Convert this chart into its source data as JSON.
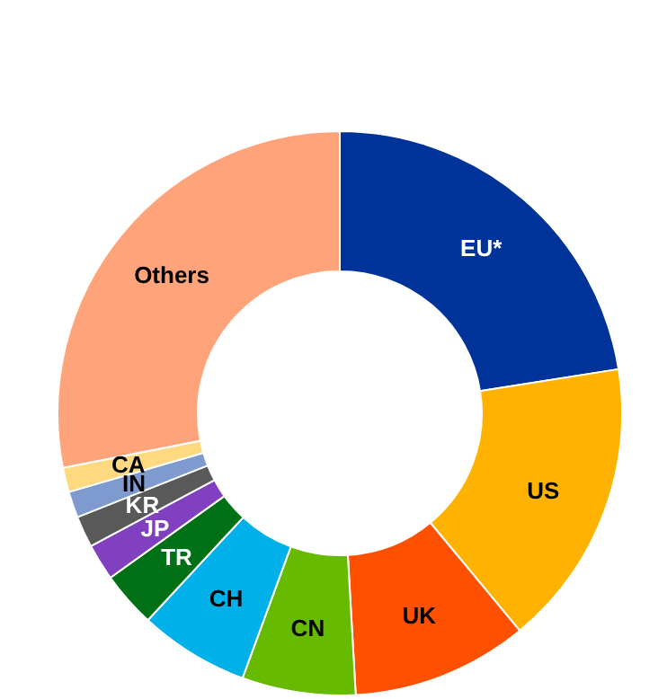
{
  "chart_data": {
    "type": "donut",
    "categories": [
      "EU*",
      "US",
      "UK",
      "CN",
      "CH",
      "TR",
      "JP",
      "KR",
      "IN",
      "CA",
      "Others"
    ],
    "values": [
      22.5,
      16.5,
      10.1,
      6.5,
      6.3,
      3.2,
      2.1,
      1.8,
      1.5,
      1.4,
      28.1
    ],
    "colors": [
      "#003399",
      "#ffb300",
      "#ff5000",
      "#66bb00",
      "#00b0e8",
      "#007016",
      "#8040c0",
      "#595959",
      "#7f9acf",
      "#ffd97f",
      "#ffa47a"
    ],
    "legend": false
  }
}
